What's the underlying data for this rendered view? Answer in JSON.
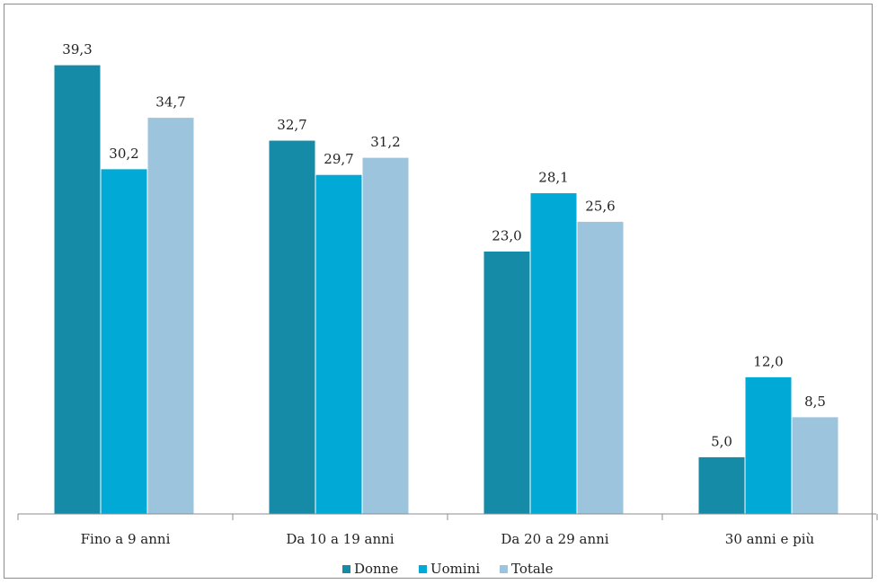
{
  "chart_data": {
    "type": "bar",
    "categories": [
      "Fino a 9 anni",
      "Da 10 a 19 anni",
      "Da 20 a 29 anni",
      "30 anni e più"
    ],
    "series": [
      {
        "name": "Donne",
        "values": [
          39.3,
          32.7,
          23.0,
          5.0
        ],
        "labels": [
          "39,3",
          "32,7",
          "23,0",
          "5,0"
        ],
        "color": "#158ba8"
      },
      {
        "name": "Uomini",
        "values": [
          30.2,
          29.7,
          28.1,
          12.0
        ],
        "labels": [
          "30,2",
          "29,7",
          "28,1",
          "12,0"
        ],
        "color": "#00a9d6"
      },
      {
        "name": "Totale",
        "values": [
          34.7,
          31.2,
          25.6,
          8.5
        ],
        "labels": [
          "34,7",
          "31,2",
          "25,6",
          "8,5"
        ],
        "color": "#9cc4dc"
      }
    ],
    "ylim": [
      0,
      40
    ],
    "grid": false,
    "legend": "bottom"
  }
}
